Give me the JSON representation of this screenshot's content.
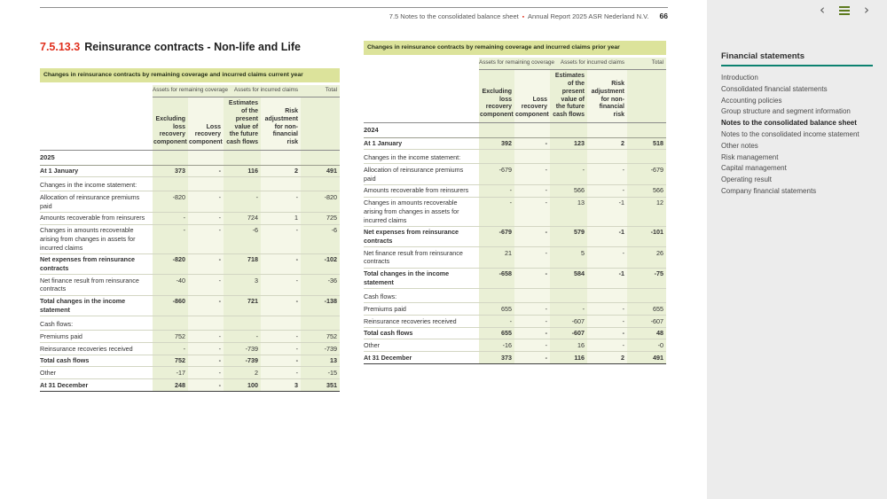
{
  "header": {
    "breadcrumb": "7.5 Notes to the consolidated balance sheet",
    "separator": "▪",
    "report_title": "Annual Report 2025 ASR Nederland N.V.",
    "page_number": "66"
  },
  "section": {
    "number": "7.5.13.3",
    "title": "Reinsurance contracts - Non-life and Life"
  },
  "icons": {
    "prev": "‹",
    "next": "›"
  },
  "colors": {
    "accent_red": "#e0301e",
    "banner_green": "#dce39b",
    "stripe_dark": "#eaf0d6",
    "stripe_light": "#f5f7e8",
    "sidebar_background": "#ececec",
    "sidebar_rule_teal": "#0c8270",
    "menu_icon_green": "#5d7a1f"
  },
  "sidebar": {
    "title": "Financial statements",
    "items": [
      {
        "label": "Introduction",
        "active": false
      },
      {
        "label": "Consolidated financial statements",
        "active": false
      },
      {
        "label": "Accounting policies",
        "active": false
      },
      {
        "label": "Group structure and segment information",
        "active": false
      },
      {
        "label": "Notes to the consolidated balance sheet",
        "active": true
      },
      {
        "label": "Notes to the consolidated income statement",
        "active": false
      },
      {
        "label": "Other notes",
        "active": false
      },
      {
        "label": "Risk management",
        "active": false
      },
      {
        "label": "Capital management",
        "active": false
      },
      {
        "label": "Operating result",
        "active": false
      },
      {
        "label": "Company financial statements",
        "active": false
      }
    ]
  },
  "tables": [
    {
      "title": "Changes in reinsurance contracts by remaining coverage and incurred claims current year",
      "year": "2025",
      "group_headers": [
        "Assets for remaining coverage",
        "Assets for incurred claims",
        "Total"
      ],
      "col_headers": [
        "Excluding loss recovery component",
        "Loss recovery component",
        "Estimates of the present value of the future cash flows",
        "Risk adjustment for non-financial risk"
      ],
      "rows": [
        {
          "label": "At 1 January",
          "style": "opening",
          "values": [
            "373",
            "-",
            "116",
            "2",
            "491"
          ]
        },
        {
          "label": "Changes in the income statement:",
          "style": "section",
          "values": [
            "",
            "",
            "",
            "",
            ""
          ]
        },
        {
          "label": "Allocation of reinsurance premiums paid",
          "style": "data",
          "values": [
            "-820",
            "-",
            "-",
            "-",
            "-820"
          ]
        },
        {
          "label": "Amounts recoverable from reinsurers",
          "style": "data",
          "values": [
            "-",
            "-",
            "724",
            "1",
            "725"
          ]
        },
        {
          "label": "Changes in amounts recoverable arising from changes in assets for incurred claims",
          "style": "data",
          "values": [
            "-",
            "-",
            "-6",
            "-",
            "-6"
          ]
        },
        {
          "label": "Net expenses from reinsurance contracts",
          "style": "total",
          "values": [
            "-820",
            "-",
            "718",
            "-",
            "-102"
          ]
        },
        {
          "label": "Net finance result from reinsurance contracts",
          "style": "data",
          "values": [
            "-40",
            "-",
            "3",
            "-",
            "-36"
          ]
        },
        {
          "label": "Total changes in the income statement",
          "style": "total",
          "values": [
            "-860",
            "-",
            "721",
            "-",
            "-138"
          ]
        },
        {
          "label": "Cash flows:",
          "style": "section",
          "values": [
            "",
            "",
            "",
            "",
            ""
          ]
        },
        {
          "label": "Premiums paid",
          "style": "data",
          "values": [
            "752",
            "-",
            "-",
            "-",
            "752"
          ]
        },
        {
          "label": "Reinsurance recoveries received",
          "style": "data",
          "values": [
            "-",
            "-",
            "-739",
            "-",
            "-739"
          ]
        },
        {
          "label": "Total cash flows",
          "style": "total",
          "values": [
            "752",
            "-",
            "-739",
            "-",
            "13"
          ]
        },
        {
          "label": "Other",
          "style": "data",
          "values": [
            "-17",
            "-",
            "2",
            "-",
            "-15"
          ]
        },
        {
          "label": "At 31 December",
          "style": "closing",
          "values": [
            "248",
            "-",
            "100",
            "3",
            "351"
          ]
        }
      ]
    },
    {
      "title": "Changes in reinsurance contracts by remaining coverage and incurred claims prior year",
      "year": "2024",
      "group_headers": [
        "Assets for remaining coverage",
        "Assets for incurred claims",
        "Total"
      ],
      "col_headers": [
        "Excluding loss recovery component",
        "Loss recovery component",
        "Estimates of the present value of the future cash flows",
        "Risk adjustment for non-financial risk"
      ],
      "rows": [
        {
          "label": "At 1 January",
          "style": "opening",
          "values": [
            "392",
            "-",
            "123",
            "2",
            "518"
          ]
        },
        {
          "label": "Changes in the income statement:",
          "style": "section",
          "values": [
            "",
            "",
            "",
            "",
            ""
          ]
        },
        {
          "label": "Allocation of reinsurance premiums paid",
          "style": "data",
          "values": [
            "-679",
            "-",
            "-",
            "-",
            "-679"
          ]
        },
        {
          "label": "Amounts recoverable from reinsurers",
          "style": "data",
          "values": [
            "-",
            "-",
            "566",
            "-",
            "566"
          ]
        },
        {
          "label": "Changes in amounts recoverable arising from changes in assets for incurred claims",
          "style": "data",
          "values": [
            "-",
            "-",
            "13",
            "-1",
            "12"
          ]
        },
        {
          "label": "Net expenses from reinsurance contracts",
          "style": "total",
          "values": [
            "-679",
            "-",
            "579",
            "-1",
            "-101"
          ]
        },
        {
          "label": "Net finance result from reinsurance contracts",
          "style": "data",
          "values": [
            "21",
            "-",
            "5",
            "-",
            "26"
          ]
        },
        {
          "label": "Total changes in the income statement",
          "style": "total",
          "values": [
            "-658",
            "-",
            "584",
            "-1",
            "-75"
          ]
        },
        {
          "label": "Cash flows:",
          "style": "section",
          "values": [
            "",
            "",
            "",
            "",
            ""
          ]
        },
        {
          "label": "Premiums paid",
          "style": "data",
          "values": [
            "655",
            "-",
            "-",
            "-",
            "655"
          ]
        },
        {
          "label": "Reinsurance recoveries received",
          "style": "data",
          "values": [
            "-",
            "-",
            "-607",
            "-",
            "-607"
          ]
        },
        {
          "label": "Total cash flows",
          "style": "total",
          "values": [
            "655",
            "-",
            "-607",
            "-",
            "48"
          ]
        },
        {
          "label": "Other",
          "style": "data",
          "values": [
            "-16",
            "-",
            "16",
            "-",
            "-0"
          ]
        },
        {
          "label": "At 31 December",
          "style": "closing",
          "values": [
            "373",
            "-",
            "116",
            "2",
            "491"
          ]
        }
      ]
    }
  ]
}
